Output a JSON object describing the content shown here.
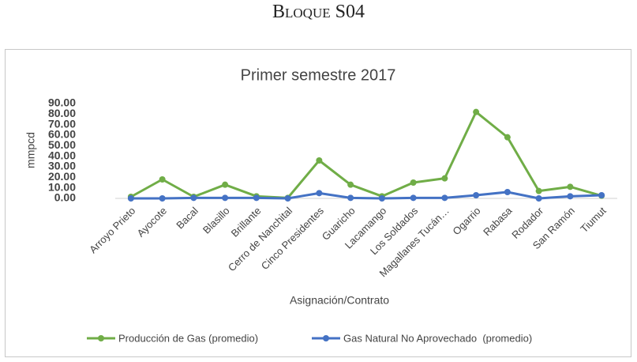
{
  "heading": "Bloque S04",
  "chart_data": {
    "type": "line",
    "title": "Primer semestre 2017",
    "x_label": "Asignación/Contrato",
    "y_label": "mmpcd",
    "categories": [
      "Arroyo Prieto",
      "Ayocote",
      "Bacal",
      "Blasillo",
      "Brillante",
      "Cerro de Nanchital",
      "Cinco Presidentes",
      "Guaricho",
      "Lacamango",
      "Los Soldados",
      "Magallanes Tucán…",
      "Ogarrio",
      "Rabasa",
      "Rodador",
      "San Ramón",
      "Tiumut"
    ],
    "series": [
      {
        "name": "Producción de Gas (promedio)",
        "color": "#70ad47",
        "values": [
          1.5,
          18,
          1.5,
          13,
          2,
          0.5,
          36,
          13,
          2,
          15,
          19,
          82,
          58,
          7,
          11,
          2.5
        ]
      },
      {
        "name": "Gas Natural No Aprovechado  (promedio)",
        "color": "#4472c4",
        "values": [
          0,
          0,
          0.5,
          0.5,
          0.5,
          0,
          5,
          0.5,
          0,
          0.5,
          0.5,
          3,
          6,
          0,
          2,
          3
        ]
      }
    ],
    "ylim": [
      0,
      90
    ],
    "yticks": [
      {
        "value": 0,
        "label": "0.00"
      },
      {
        "value": 10,
        "label": "10.00"
      },
      {
        "value": 20,
        "label": "20.00"
      },
      {
        "value": 30,
        "label": "30.00"
      },
      {
        "value": 40,
        "label": "40.00"
      },
      {
        "value": 50,
        "label": "50.00"
      },
      {
        "value": 60,
        "label": "60.00"
      },
      {
        "value": 70,
        "label": "70.00"
      },
      {
        "value": 80,
        "label": "80.00"
      },
      {
        "value": 90,
        "label": "90.00"
      }
    ],
    "grid": false,
    "legend": "bottom"
  }
}
